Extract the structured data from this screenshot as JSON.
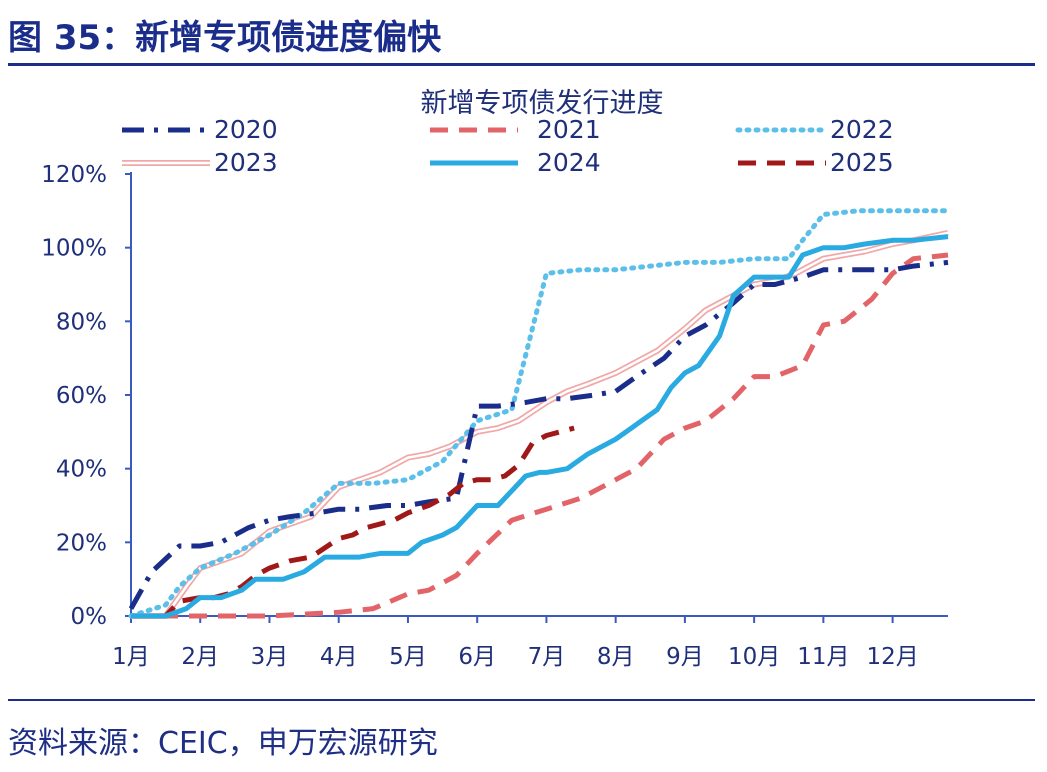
{
  "figure": {
    "title": "图 35：新增专项债进度偏快",
    "source": "资料来源：CEIC，申万宏源研究"
  },
  "colors": {
    "title": "#1a2d8a",
    "axis": "#3a5ac0",
    "text": "#1f2f7a"
  },
  "chart_data": {
    "type": "line",
    "title": "新增专项债发行进度",
    "xlabel": "",
    "ylabel": "",
    "x_ticks": [
      "1月",
      "2月",
      "3月",
      "4月",
      "5月",
      "6月",
      "7月",
      "8月",
      "9月",
      "10月",
      "11月",
      "12月"
    ],
    "x_range": [
      1,
      12.8
    ],
    "ylim": [
      0,
      120
    ],
    "y_ticks": [
      0,
      20,
      40,
      60,
      80,
      100,
      120
    ],
    "y_tick_labels": [
      "0%",
      "20%",
      "40%",
      "60%",
      "80%",
      "100%",
      "120%"
    ],
    "legend_position": "top",
    "series": [
      {
        "name": "2020",
        "style": "dashdot",
        "color": "#1a2d8a",
        "x": [
          1,
          1.3,
          1.7,
          2,
          2.3,
          2.7,
          3,
          3.3,
          3.7,
          4,
          4.3,
          4.7,
          5,
          5.3,
          5.7,
          6,
          6.3,
          6.7,
          7,
          7.3,
          7.7,
          8,
          8.3,
          8.7,
          9,
          9.3,
          9.7,
          10,
          10.3,
          10.7,
          11,
          11.3,
          11.7,
          12,
          12.3,
          12.8
        ],
        "values": [
          2,
          12,
          19,
          19,
          20,
          24,
          26,
          27,
          28,
          29,
          29,
          30,
          30,
          31,
          32,
          57,
          57,
          58,
          59,
          59,
          60,
          61,
          65,
          70,
          76,
          79,
          85,
          90,
          90,
          92,
          94,
          94,
          94,
          94,
          95,
          96
        ]
      },
      {
        "name": "2021",
        "style": "dashed",
        "color": "#e36468",
        "x": [
          1,
          1.5,
          2,
          2.5,
          3,
          3.5,
          4,
          4.5,
          5,
          5.3,
          5.7,
          6,
          6.5,
          7,
          7.5,
          8,
          8.3,
          8.7,
          9,
          9.3,
          9.7,
          10,
          10.3,
          10.7,
          11,
          11.3,
          11.7,
          12,
          12.3,
          12.8
        ],
        "values": [
          0,
          0,
          0,
          0,
          0,
          0.5,
          1,
          2,
          6,
          7,
          11,
          17,
          26,
          29,
          32,
          37,
          40,
          48,
          51,
          53,
          59,
          65,
          65,
          68,
          79,
          80,
          86,
          93,
          97,
          98
        ]
      },
      {
        "name": "2022",
        "style": "dotted",
        "color": "#5bbfea",
        "x": [
          1,
          1.5,
          1.7,
          2,
          2.5,
          3,
          3.5,
          4,
          4.5,
          5,
          5.5,
          6,
          6.5,
          7,
          7.5,
          8,
          8.5,
          9,
          9.5,
          10,
          10.5,
          10.7,
          11,
          11.5,
          12,
          12.5,
          12.8
        ],
        "values": [
          0,
          3,
          8,
          13,
          17,
          22,
          28,
          36,
          36,
          37,
          42,
          53,
          56,
          93,
          94,
          94,
          95,
          96,
          96,
          97,
          97,
          102,
          109,
          110,
          110,
          110,
          110
        ]
      },
      {
        "name": "2023",
        "style": "double",
        "color": "#f0a8a8",
        "x": [
          1,
          1.3,
          1.5,
          1.8,
          2,
          2.3,
          2.6,
          3,
          3.3,
          3.6,
          4,
          4.3,
          4.6,
          5,
          5.3,
          5.6,
          6,
          6.3,
          6.6,
          7,
          7.3,
          7.6,
          8,
          8.3,
          8.6,
          9,
          9.3,
          9.6,
          10,
          10.3,
          10.6,
          11,
          11.3,
          11.6,
          12,
          12.3,
          12.8
        ],
        "values": [
          0,
          0,
          0,
          8,
          13,
          15,
          17,
          23,
          25,
          27,
          35,
          37,
          39,
          43,
          44,
          46,
          50,
          51,
          53,
          58,
          61,
          63,
          66,
          69,
          72,
          78,
          83,
          86,
          90,
          91,
          93,
          97,
          98,
          99,
          101,
          102,
          104
        ]
      },
      {
        "name": "2024",
        "style": "solid",
        "color": "#29aae1",
        "x": [
          1,
          1.5,
          1.8,
          2,
          2.3,
          2.6,
          2.8,
          3,
          3.2,
          3.5,
          3.8,
          4,
          4.3,
          4.6,
          5,
          5.2,
          5.5,
          5.7,
          5.9,
          6,
          6.3,
          6.5,
          6.7,
          6.9,
          7,
          7.3,
          7.6,
          8,
          8.3,
          8.6,
          8.8,
          9,
          9.2,
          9.5,
          9.7,
          10,
          10.3,
          10.5,
          10.7,
          11,
          11.3,
          11.6,
          12,
          12.3,
          12.8
        ],
        "values": [
          0,
          0,
          2,
          5,
          5,
          7,
          10,
          10,
          10,
          12,
          16,
          16,
          16,
          17,
          17,
          20,
          22,
          24,
          28,
          30,
          30,
          34,
          38,
          39,
          39,
          40,
          44,
          48,
          52,
          56,
          62,
          66,
          68,
          76,
          87,
          92,
          92,
          92,
          98,
          100,
          100,
          101,
          102,
          102,
          103
        ]
      },
      {
        "name": "2025",
        "style": "dashed",
        "color": "#a01818",
        "x": [
          1,
          1.5,
          1.7,
          2,
          2.2,
          2.4,
          2.6,
          2.8,
          3,
          3.3,
          3.6,
          4,
          4.2,
          4.4,
          4.6,
          4.8,
          5,
          5.3,
          5.6,
          5.8,
          6,
          6.2,
          6.4,
          6.6,
          6.8,
          7,
          7.2,
          7.4
        ],
        "values": [
          0,
          0,
          4,
          5,
          5,
          6,
          8,
          11,
          13,
          15,
          16,
          21,
          22,
          24,
          25,
          26,
          28,
          30,
          33,
          36,
          37,
          37,
          38,
          41,
          47,
          49,
          50,
          51
        ]
      }
    ]
  }
}
